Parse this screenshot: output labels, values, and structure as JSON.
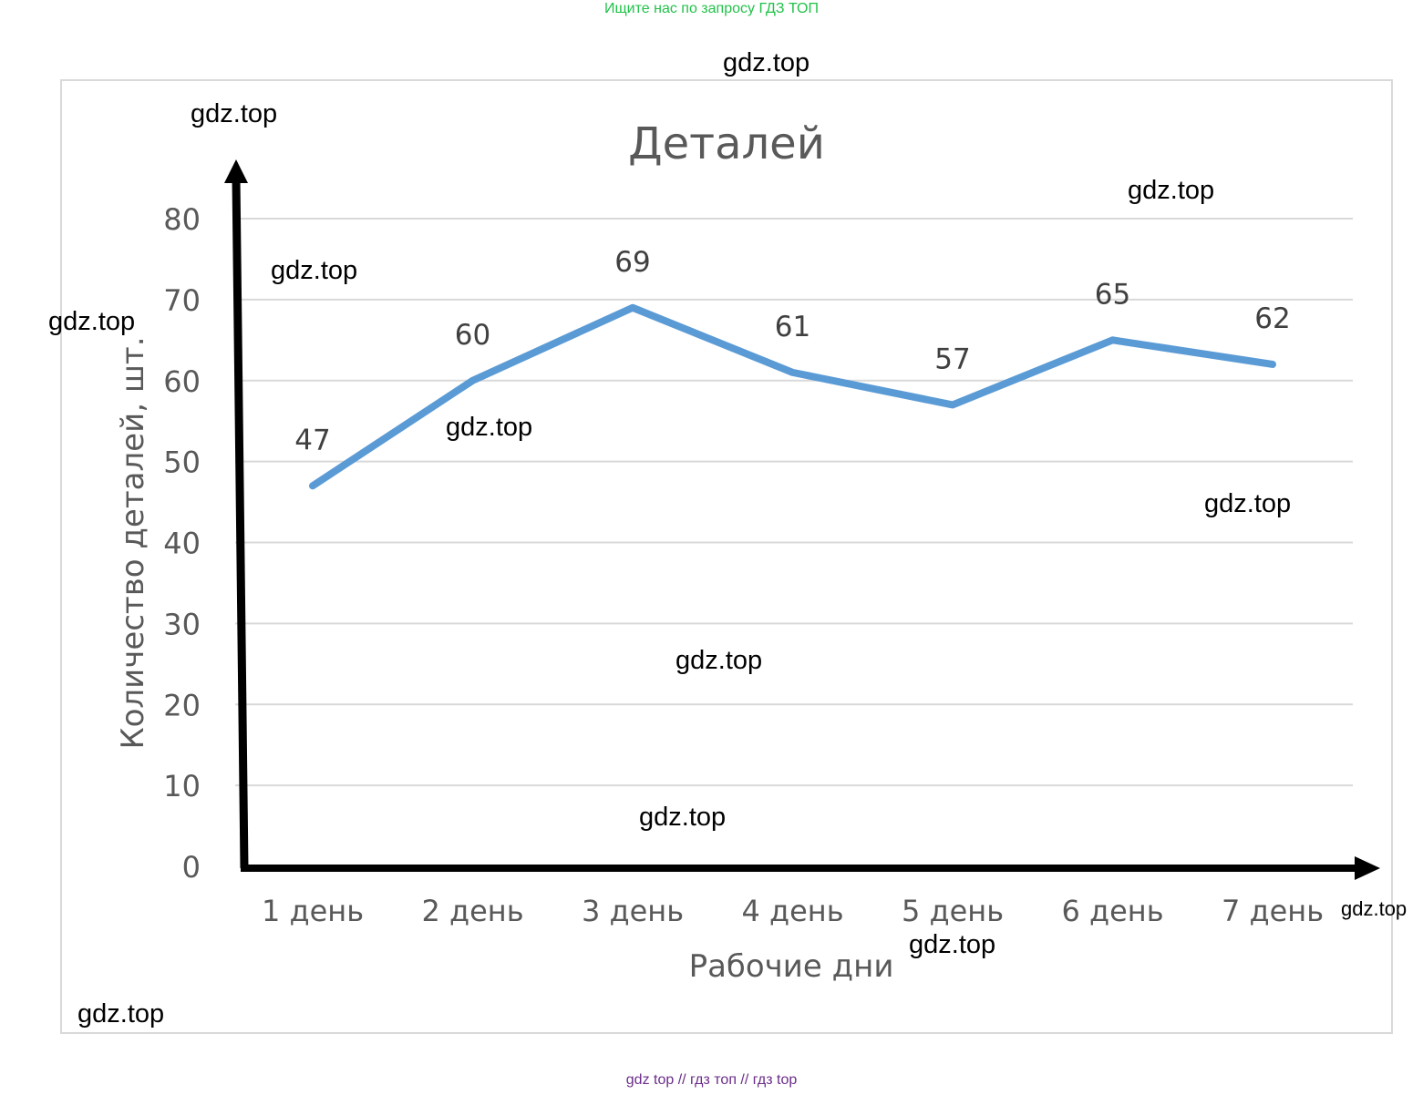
{
  "banner_top": "Ищите нас по запросу ГДЗ ТОП",
  "banner_bottom": "gdz top  //  гдз топ  //  гдз top",
  "watermark_text": "gdz.top",
  "colors": {
    "line": "#5b9bd5",
    "grid": "#d9d9d9",
    "axis": "#000000",
    "text": "#595959",
    "banner_top": "#22c24a",
    "banner_bottom": "#6b2d8a"
  },
  "chart_data": {
    "type": "line",
    "title": "Деталей",
    "xlabel": "Рабочие дни",
    "ylabel": "Количество деталей, шт.",
    "categories": [
      "1 день",
      "2 день",
      "3 день",
      "4 день",
      "5 день",
      "6 день",
      "7 день"
    ],
    "series": [
      {
        "values": [
          47,
          60,
          69,
          61,
          57,
          65,
          62
        ]
      }
    ],
    "ylim": [
      0,
      80
    ],
    "yticks": [
      0,
      10,
      20,
      30,
      40,
      50,
      60,
      70,
      80
    ],
    "grid": true,
    "data_labels": true,
    "legend": "none"
  }
}
